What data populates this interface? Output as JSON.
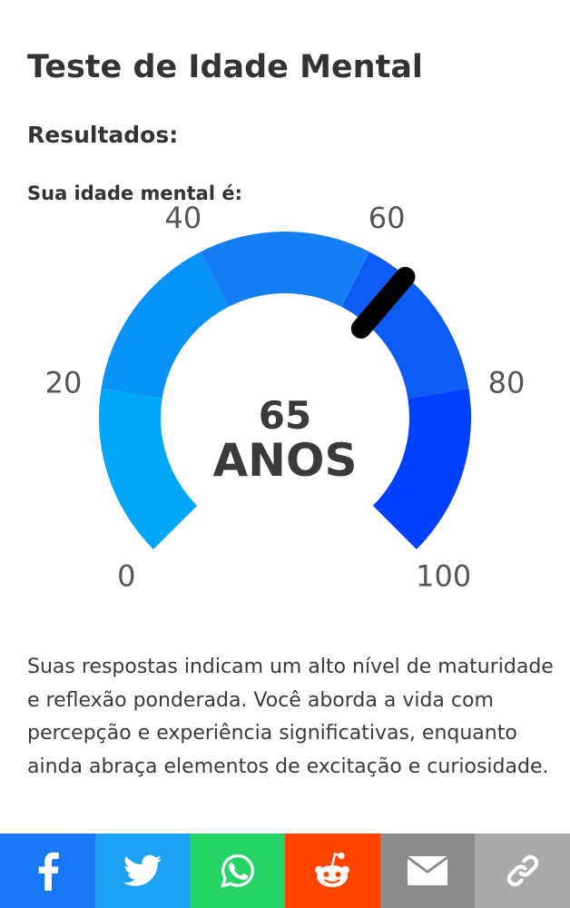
{
  "page": {
    "title": "Teste de Idade Mental",
    "results_heading": "Resultados:",
    "age_intro": "Sua idade mental é:"
  },
  "gauge": {
    "value": 65,
    "value_label": "65",
    "unit_label": "ANOS",
    "min": 0,
    "max": 100,
    "ticks": [
      {
        "value": 0,
        "label": "0"
      },
      {
        "value": 20,
        "label": "20"
      },
      {
        "value": 40,
        "label": "40"
      },
      {
        "value": 60,
        "label": "60"
      },
      {
        "value": 80,
        "label": "80"
      },
      {
        "value": 100,
        "label": "100"
      }
    ],
    "segment_colors": [
      "#00a6f7",
      "#0892f5",
      "#157ef3",
      "#0d5cf5",
      "#0040ff"
    ],
    "needle_color": "#000000"
  },
  "description": "Suas respostas indicam um alto nível de maturidade e reflexão ponderada. Você aborda a vida com percepção e experiência significativas, enquanto ainda abraça elementos de excitação e curiosidade.",
  "share": [
    {
      "name": "facebook",
      "icon": "facebook-icon",
      "color": "#1877f2"
    },
    {
      "name": "twitter",
      "icon": "twitter-icon",
      "color": "#1da1f2"
    },
    {
      "name": "whatsapp",
      "icon": "whatsapp-icon",
      "color": "#25d366"
    },
    {
      "name": "reddit",
      "icon": "reddit-icon",
      "color": "#ff4500"
    },
    {
      "name": "email",
      "icon": "email-icon",
      "color": "#8c8c8c"
    },
    {
      "name": "link",
      "icon": "link-icon",
      "color": "#aaaaaa"
    }
  ]
}
